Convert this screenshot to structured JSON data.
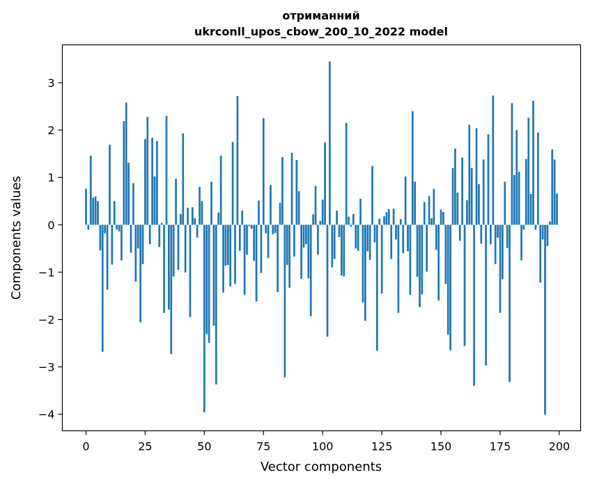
{
  "chart_data": {
    "type": "bar",
    "title_line1": "отриманний",
    "title_line2": "ukrconll_upos_cbow_200_10_2022 model",
    "xlabel": "Vector components",
    "ylabel": "Components values",
    "xlim": [
      -10,
      209
    ],
    "ylim": [
      -4.35,
      3.8
    ],
    "x_ticks": [
      0,
      25,
      50,
      75,
      100,
      125,
      150,
      175,
      200
    ],
    "y_ticks": [
      -4,
      -3,
      -2,
      -1,
      0,
      1,
      2,
      3
    ],
    "y_tick_labels": [
      "−4",
      "−3",
      "−2",
      "−1",
      "0",
      "1",
      "2",
      "3"
    ],
    "bar_color": "#1f77b4",
    "grid": false,
    "legend": "none",
    "x": [
      0,
      1,
      2,
      3,
      4,
      5,
      6,
      7,
      8,
      9,
      10,
      11,
      12,
      13,
      14,
      15,
      16,
      17,
      18,
      19,
      20,
      21,
      22,
      23,
      24,
      25,
      26,
      27,
      28,
      29,
      30,
      31,
      32,
      33,
      34,
      35,
      36,
      37,
      38,
      39,
      40,
      41,
      42,
      43,
      44,
      45,
      46,
      47,
      48,
      49,
      50,
      51,
      52,
      53,
      54,
      55,
      56,
      57,
      58,
      59,
      60,
      61,
      62,
      63,
      64,
      65,
      66,
      67,
      68,
      69,
      70,
      71,
      72,
      73,
      74,
      75,
      76,
      77,
      78,
      79,
      80,
      81,
      82,
      83,
      84,
      85,
      86,
      87,
      88,
      89,
      90,
      91,
      92,
      93,
      94,
      95,
      96,
      97,
      98,
      99,
      100,
      101,
      102,
      103,
      104,
      105,
      106,
      107,
      108,
      109,
      110,
      111,
      112,
      113,
      114,
      115,
      116,
      117,
      118,
      119,
      120,
      121,
      122,
      123,
      124,
      125,
      126,
      127,
      128,
      129,
      130,
      131,
      132,
      133,
      134,
      135,
      136,
      137,
      138,
      139,
      140,
      141,
      142,
      143,
      144,
      145,
      146,
      147,
      148,
      149,
      150,
      151,
      152,
      153,
      154,
      155,
      156,
      157,
      158,
      159,
      160,
      161,
      162,
      163,
      164,
      165,
      166,
      167,
      168,
      169,
      170,
      171,
      172,
      173,
      174,
      175,
      176,
      177,
      178,
      179,
      180,
      181,
      182,
      183,
      184,
      185,
      186,
      187,
      188,
      189,
      190,
      191,
      192,
      193,
      194,
      195,
      196,
      197,
      198,
      199
    ],
    "values": [
      0.76,
      -0.1,
      1.46,
      0.57,
      0.6,
      0.5,
      -0.54,
      -2.68,
      -0.18,
      -1.37,
      1.69,
      -0.84,
      0.5,
      -0.1,
      -0.14,
      -0.75,
      2.19,
      2.58,
      1.31,
      -0.59,
      0.88,
      -1.2,
      -0.5,
      -2.06,
      -0.83,
      1.81,
      2.28,
      -0.41,
      1.84,
      1.02,
      1.77,
      -0.47,
      0.04,
      -1.86,
      2.3,
      -1.79,
      -2.73,
      -1.09,
      0.97,
      -0.95,
      0.23,
      1.93,
      -1.01,
      0.36,
      -1.95,
      0.37,
      0.14,
      -0.27,
      0.8,
      0.5,
      -3.96,
      -2.31,
      -2.49,
      0.91,
      -2.13,
      -3.37,
      0.26,
      1.46,
      -1.43,
      -0.86,
      -0.85,
      -1.3,
      1.75,
      -1.25,
      2.72,
      -0.55,
      0.3,
      -1.48,
      -0.63,
      -0.03,
      -0.08,
      -0.76,
      -1.62,
      0.51,
      -1.02,
      2.25,
      -0.18,
      -0.7,
      0.84,
      -0.2,
      -0.17,
      -1.42,
      0.47,
      1.43,
      -3.22,
      -0.85,
      -1.33,
      1.52,
      -0.67,
      1.37,
      0.71,
      -1.14,
      -0.48,
      -0.41,
      -1.13,
      -1.93,
      0.22,
      0.82,
      -0.63,
      0.08,
      0.53,
      1.74,
      -2.36,
      3.45,
      -0.9,
      -0.72,
      0.3,
      -0.26,
      -1.07,
      -1.09,
      2.15,
      0.17,
      -0.04,
      0.23,
      -0.5,
      -0.55,
      0.55,
      -1.64,
      -2.03,
      -0.56,
      -0.74,
      1.24,
      -0.37,
      -2.66,
      0.13,
      -1.45,
      0.18,
      0.27,
      0.33,
      -0.72,
      0.34,
      -0.31,
      -1.86,
      0.12,
      -0.6,
      1.02,
      -0.56,
      -1.48,
      2.4,
      0.91,
      -1.1,
      -1.74,
      -1.47,
      0.48,
      -0.99,
      0.61,
      0.14,
      0.76,
      -0.53,
      -1.6,
      0.32,
      0.27,
      -1.25,
      -2.32,
      -2.65,
      1.2,
      1.61,
      0.68,
      -0.34,
      1.42,
      -2.56,
      0.52,
      2.11,
      1.2,
      -3.4,
      2.04,
      0.86,
      -0.4,
      1.38,
      -2.97,
      1.91,
      -0.41,
      2.73,
      -0.83,
      -0.27,
      -1.86,
      -1.15,
      0.91,
      -0.49,
      -3.32,
      2.57,
      1.05,
      2.0,
      1.12,
      -0.75,
      -0.1,
      1.39,
      2.26,
      0.65,
      2.62,
      -0.1,
      1.95,
      -1.22,
      -0.31,
      -4.01,
      -0.45,
      0.07,
      1.59,
      1.38,
      0.66
    ]
  }
}
